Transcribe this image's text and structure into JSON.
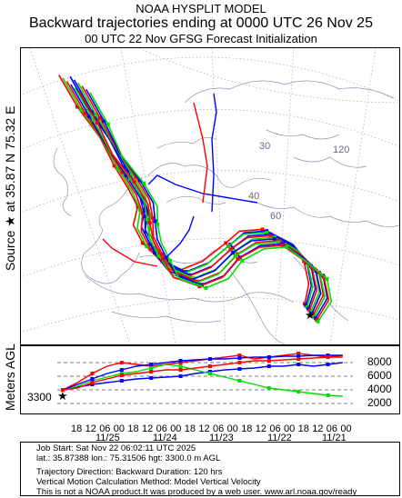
{
  "header": {
    "title": "NOAA HYSPLIT MODEL",
    "subtitle": "Backward trajectories ending at 0000 UTC 26 Nov 25",
    "subtitle2": "00 UTC 22 Nov    GFSG  Forecast Initialization"
  },
  "map_panel": {
    "source_label": "Source ★  at   35.87 N   75.32 E",
    "grid_labels": [
      "30",
      "40",
      "60",
      "120"
    ],
    "source_marker": "★",
    "trajectory_colors": {
      "red": "#ff0000",
      "blue": "#0000ff",
      "green": "#00dd00"
    }
  },
  "profile_panel": {
    "ylabel": "Meters AGL",
    "start_height": "3300",
    "right_ticks": [
      "8000",
      "6000",
      "4000",
      "2000"
    ],
    "hour_ticks": [
      "18",
      "12",
      "06",
      "00",
      "18",
      "12",
      "06",
      "00",
      "18",
      "12",
      "06",
      "00",
      "18",
      "12",
      "06",
      "00",
      "18",
      "12",
      "06",
      "00"
    ],
    "date_ticks": [
      "11/25",
      "11/24",
      "11/23",
      "11/22",
      "11/21"
    ]
  },
  "footer": {
    "line1": "Job Start: Sat Nov 22 06:02:11 UTC 2025",
    "line2": "lat.: 35.87388   lon.: 75.31506   hgt: 3300.0 m AGL",
    "line3": "Trajectory Direction: Backward       Duration: 120 hrs",
    "line4": "Vertical Motion Calculation Method: Model Vertical Velocity",
    "line5": "This is not a NOAA product.It was produced by a web user. www.arl.noaa.gov/ready"
  }
}
